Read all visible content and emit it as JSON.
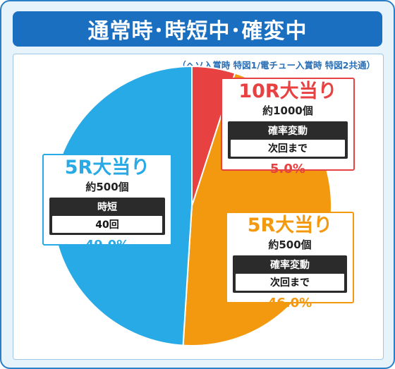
{
  "title": "通常時･時短中･確変中",
  "note": "（ヘソ入賞時 特図1/電チュー入賞時 特図2共通）",
  "colors": {
    "red": "#e84142",
    "orange": "#f3990f",
    "blue": "#28aae6"
  },
  "chart_data": {
    "type": "pie",
    "slices": [
      {
        "label": "10R大当り",
        "rounds": "約1000個",
        "mode": "確率変動",
        "detail": "次回まで",
        "percent_label": "5.0%",
        "value": 5.0,
        "color": "#e84142"
      },
      {
        "label": "5R大当り",
        "rounds": "約500個",
        "mode": "確率変動",
        "detail": "次回まで",
        "percent_label": "46.0%",
        "value": 46.0,
        "color": "#f3990f"
      },
      {
        "label": "5R大当り",
        "rounds": "約500個",
        "mode": "時短",
        "detail": "40回",
        "percent_label": "49.0%",
        "value": 49.0,
        "color": "#28aae6"
      }
    ]
  }
}
